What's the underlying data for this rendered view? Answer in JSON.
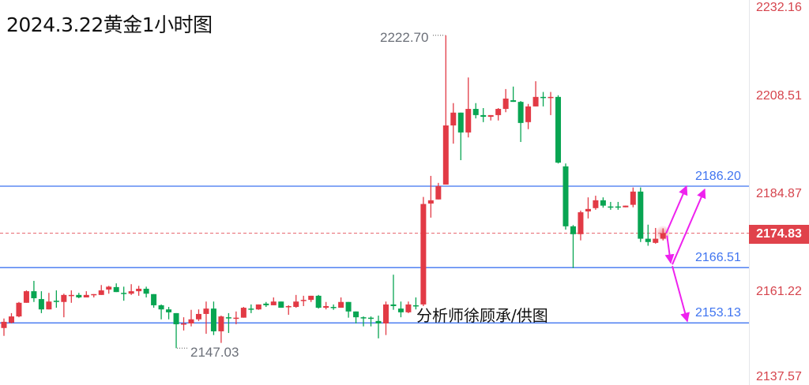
{
  "title": "2024.3.22黄金1小时图",
  "credit": "分析师徐顾承/供图",
  "colors": {
    "up": "#e23a45",
    "down": "#08a552",
    "level": "#3f74f0",
    "arrow": "#ee22ee",
    "axis": "#d6444d"
  },
  "chart_data": {
    "type": "candlestick",
    "title": "2024.3.22黄金1小时图",
    "up_color_meaning": "red = up, green = down",
    "ylim": [
      2137.57,
      2232.16
    ],
    "y_ticks": [
      "2232.16",
      "2208.51",
      "2184.87",
      "2161.22",
      "2137.57"
    ],
    "current_price": "2174.83",
    "high_annotation": "2222.70",
    "low_annotation": "2147.03",
    "levels": [
      {
        "value": 2186.2,
        "label": "2186.20"
      },
      {
        "value": 2166.51,
        "label": "2166.51"
      },
      {
        "value": 2153.13,
        "label": "2153.13"
      }
    ],
    "projections": [
      {
        "from": 2174.83,
        "to": 2186.2,
        "direction": "up"
      },
      {
        "from": 2174.83,
        "to": 2166.51,
        "then": 2186.2,
        "direction": "down-then-up"
      },
      {
        "from": 2166.51,
        "to": 2153.13,
        "direction": "down"
      }
    ],
    "ohlc_fields": [
      "open",
      "high",
      "low",
      "close"
    ],
    "candles": [
      [
        2151.9,
        2154.2,
        2150.0,
        2153.4
      ],
      [
        2153.2,
        2155.5,
        2153.0,
        2154.7
      ],
      [
        2154.7,
        2158.2,
        2154.5,
        2158.0
      ],
      [
        2158.0,
        2161.0,
        2158.0,
        2160.8
      ],
      [
        2160.8,
        2163.3,
        2158.2,
        2159.1
      ],
      [
        2158.9,
        2160.8,
        2155.5,
        2156.4
      ],
      [
        2156.4,
        2160.4,
        2156.4,
        2158.3
      ],
      [
        2158.5,
        2161.0,
        2156.8,
        2158.2
      ],
      [
        2158.2,
        2160.2,
        2154.5,
        2159.9
      ],
      [
        2159.7,
        2161.0,
        2158.0,
        2159.9
      ],
      [
        2159.9,
        2160.4,
        2159.1,
        2159.3
      ],
      [
        2159.3,
        2160.8,
        2159.3,
        2159.9
      ],
      [
        2159.9,
        2160.1,
        2159.3,
        2160.1
      ],
      [
        2159.9,
        2162.3,
        2159.9,
        2161.0
      ],
      [
        2161.2,
        2162.1,
        2160.2,
        2161.9
      ],
      [
        2161.8,
        2162.7,
        2160.6,
        2160.6
      ],
      [
        2160.4,
        2161.9,
        2158.5,
        2160.2
      ],
      [
        2160.2,
        2162.5,
        2159.9,
        2160.8
      ],
      [
        2160.8,
        2162.1,
        2159.7,
        2161.4
      ],
      [
        2161.4,
        2161.9,
        2159.3,
        2160.2
      ],
      [
        2160.1,
        2160.1,
        2156.8,
        2157.4
      ],
      [
        2157.4,
        2157.6,
        2154.0,
        2156.4
      ],
      [
        2156.4,
        2157.0,
        2154.0,
        2155.7
      ],
      [
        2155.5,
        2155.5,
        2147.03,
        2152.8
      ],
      [
        2152.8,
        2154.5,
        2151.3,
        2153.0
      ],
      [
        2153.0,
        2156.3,
        2152.3,
        2154.0
      ],
      [
        2154.0,
        2156.4,
        2153.6,
        2155.3
      ],
      [
        2155.3,
        2158.3,
        2150.5,
        2156.6
      ],
      [
        2156.6,
        2158.3,
        2150.2,
        2151.1
      ],
      [
        2151.1,
        2154.9,
        2148.3,
        2154.7
      ],
      [
        2154.5,
        2155.5,
        2150.7,
        2154.4
      ],
      [
        2154.2,
        2155.9,
        2152.8,
        2154.4
      ],
      [
        2154.4,
        2157.0,
        2154.4,
        2156.8
      ],
      [
        2156.6,
        2157.6,
        2155.5,
        2156.4
      ],
      [
        2156.4,
        2157.6,
        2156.3,
        2157.6
      ],
      [
        2157.8,
        2158.2,
        2157.0,
        2157.4
      ],
      [
        2157.4,
        2159.3,
        2157.4,
        2158.3
      ],
      [
        2158.3,
        2158.3,
        2156.8,
        2156.8
      ],
      [
        2157.0,
        2157.4,
        2155.1,
        2157.2
      ],
      [
        2157.0,
        2159.9,
        2156.8,
        2158.3
      ],
      [
        2158.5,
        2159.7,
        2157.2,
        2158.7
      ],
      [
        2158.7,
        2159.7,
        2158.2,
        2159.7
      ],
      [
        2159.7,
        2159.9,
        2156.6,
        2156.8
      ],
      [
        2156.8,
        2158.2,
        2156.4,
        2157.2
      ],
      [
        2157.0,
        2157.6,
        2156.3,
        2156.8
      ],
      [
        2156.8,
        2159.3,
        2156.8,
        2158.2
      ],
      [
        2158.2,
        2158.2,
        2154.4,
        2155.9
      ],
      [
        2155.9,
        2155.9,
        2153.0,
        2154.5
      ],
      [
        2154.5,
        2154.7,
        2152.3,
        2154.4
      ],
      [
        2154.4,
        2154.7,
        2152.3,
        2154.2
      ],
      [
        2153.6,
        2154.9,
        2149.4,
        2153.0
      ],
      [
        2153.0,
        2158.3,
        2150.2,
        2157.6
      ],
      [
        2157.6,
        2164.8,
        2156.3,
        2157.2
      ],
      [
        2156.6,
        2158.3,
        2154.5,
        2155.7
      ],
      [
        2155.7,
        2158.3,
        2155.5,
        2157.6
      ],
      [
        2157.4,
        2159.3,
        2156.4,
        2157.2
      ],
      [
        2157.6,
        2183.6,
        2157.2,
        2181.9
      ],
      [
        2182.0,
        2188.7,
        2178.6,
        2182.8
      ],
      [
        2183.0,
        2187.0,
        2183.0,
        2186.2
      ],
      [
        2186.6,
        2222.7,
        2186.6,
        2200.9
      ],
      [
        2200.9,
        2206.3,
        2196.5,
        2204.0
      ],
      [
        2204.0,
        2204.0,
        2192.5,
        2199.2
      ],
      [
        2199.2,
        2212.5,
        2198.0,
        2204.9
      ],
      [
        2204.9,
        2206.3,
        2202.6,
        2203.4
      ],
      [
        2203.4,
        2205.1,
        2201.7,
        2203.0
      ],
      [
        2203.0,
        2203.4,
        2202.1,
        2203.4
      ],
      [
        2203.4,
        2205.1,
        2202.1,
        2204.9
      ],
      [
        2204.9,
        2209.7,
        2204.1,
        2207.4
      ],
      [
        2207.0,
        2210.3,
        2206.6,
        2206.6
      ],
      [
        2206.6,
        2206.8,
        2196.9,
        2201.5
      ],
      [
        2201.7,
        2206.1,
        2200.0,
        2205.5
      ],
      [
        2205.5,
        2211.6,
        2205.5,
        2207.8
      ],
      [
        2207.8,
        2209.0,
        2205.5,
        2207.6
      ],
      [
        2207.6,
        2209.0,
        2203.4,
        2207.8
      ],
      [
        2207.8,
        2208.2,
        2191.7,
        2191.9
      ],
      [
        2191.0,
        2191.7,
        2175.7,
        2176.5
      ],
      [
        2176.5,
        2176.8,
        2166.4,
        2174.6
      ],
      [
        2174.6,
        2180.3,
        2173.1,
        2179.9
      ],
      [
        2180.1,
        2183.5,
        2178.4,
        2180.7
      ],
      [
        2180.9,
        2183.9,
        2180.5,
        2182.8
      ],
      [
        2182.8,
        2183.5,
        2181.0,
        2181.5
      ],
      [
        2181.3,
        2182.4,
        2180.5,
        2181.1
      ],
      [
        2181.3,
        2182.4,
        2180.5,
        2181.1
      ],
      [
        2181.1,
        2181.5,
        2181.1,
        2181.5
      ],
      [
        2181.7,
        2185.9,
        2181.1,
        2184.9
      ],
      [
        2184.9,
        2185.9,
        2172.7,
        2173.5
      ],
      [
        2173.5,
        2176.9,
        2171.8,
        2172.7
      ],
      [
        2172.5,
        2176.1,
        2172.3,
        2173.5
      ],
      [
        2173.5,
        2176.0,
        2173.1,
        2174.83
      ]
    ]
  }
}
